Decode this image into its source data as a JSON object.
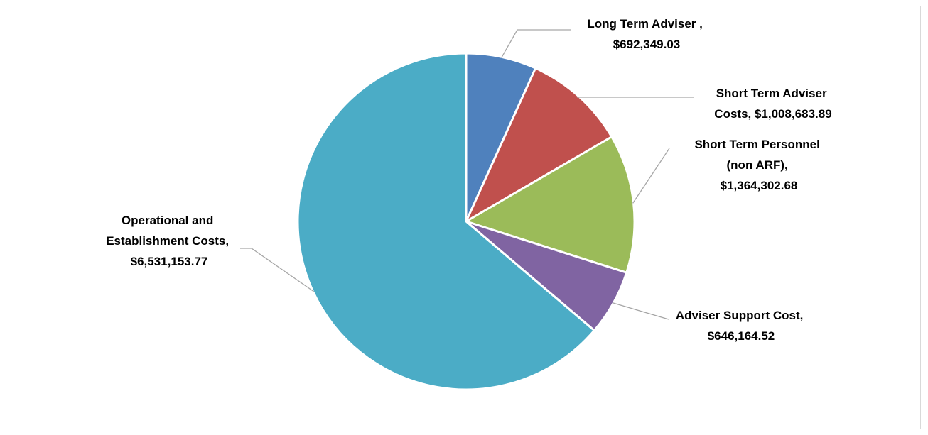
{
  "chart_data": {
    "type": "pie",
    "title": "",
    "slices": [
      {
        "name": "Long Term Adviser",
        "value": 692349.03,
        "color": "#4f81bd",
        "label_lines": [
          "Long Term Adviser ,",
          "$692,349.03"
        ]
      },
      {
        "name": "Short Term Adviser Costs",
        "value": 1008683.89,
        "color": "#c0504d",
        "label_lines": [
          "Short Term Adviser",
          "Costs,  $1,008,683.89"
        ]
      },
      {
        "name": "Short Term Personnel (non ARF)",
        "value": 1364302.68,
        "color": "#9bbb59",
        "label_lines": [
          "Short Term Personnel",
          "(non ARF),",
          "$1,364,302.68"
        ]
      },
      {
        "name": "Adviser Support Cost",
        "value": 646164.52,
        "color": "#8064a2",
        "label_lines": [
          "Adviser Support Cost,",
          "$646,164.52"
        ]
      },
      {
        "name": "Operational and Establishment Costs",
        "value": 6531153.77,
        "color": "#4bacc6",
        "label_lines": [
          "Operational and",
          "Establishment Costs,",
          "$6,531,153.77"
        ]
      }
    ],
    "start_angle_deg": 0,
    "direction": "clockwise",
    "legend": "none"
  }
}
